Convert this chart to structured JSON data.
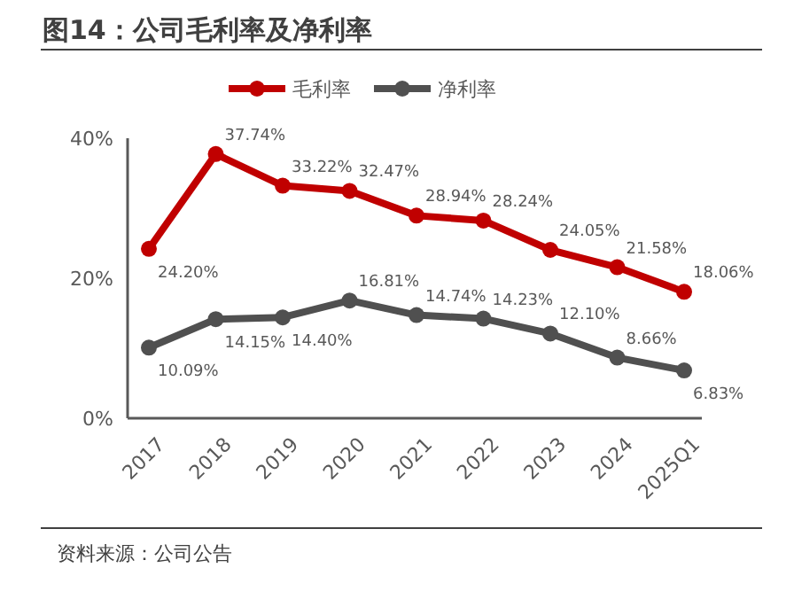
{
  "chart_data": {
    "type": "line",
    "title": "图14：公司毛利率及净利率",
    "annotations": [
      "资料来源：公司公告"
    ],
    "categories": [
      "2017",
      "2018",
      "2019",
      "2020",
      "2021",
      "2022",
      "2023",
      "2024",
      "2025Q1"
    ],
    "series": [
      {
        "name": "毛利率",
        "color": "#c00000",
        "values": [
          24.2,
          37.74,
          33.22,
          32.47,
          28.94,
          28.24,
          24.05,
          21.58,
          18.06
        ],
        "value_labels": [
          "24.20%",
          "37.74%",
          "33.22%",
          "32.47%",
          "28.94%",
          "28.24%",
          "24.05%",
          "21.58%",
          "18.06%"
        ]
      },
      {
        "name": "净利率",
        "color": "#505050",
        "values": [
          10.09,
          14.15,
          14.4,
          16.81,
          14.74,
          14.23,
          12.1,
          8.66,
          6.83
        ],
        "value_labels": [
          "10.09%",
          "14.15%",
          "14.40%",
          "16.81%",
          "14.74%",
          "14.23%",
          "12.10%",
          "8.66%",
          "6.83%"
        ]
      }
    ],
    "ylim": [
      0,
      40
    ],
    "yticks": [
      {
        "value": 0,
        "label": "0%"
      },
      {
        "value": 20,
        "label": "20%"
      },
      {
        "value": 40,
        "label": "40%"
      }
    ],
    "legend": "top",
    "marker": "circle",
    "line_style": "solid",
    "grid": false
  }
}
